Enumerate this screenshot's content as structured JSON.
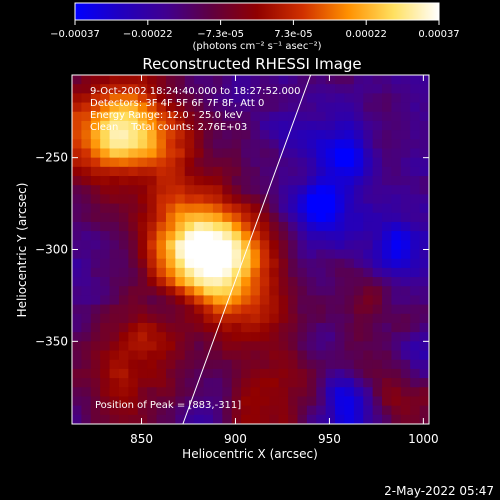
{
  "chart_data": {
    "type": "heatmap",
    "title": "Reconstructed RHESSI Image",
    "xlabel": "Heliocentric X (arcsec)",
    "ylabel": "Heliocentric Y (arcsec)",
    "xlim": [
      813,
      1003
    ],
    "ylim": [
      -395,
      -205
    ],
    "x_ticks": [
      850,
      900,
      950,
      1000
    ],
    "x_tick_labels": [
      "850",
      "900",
      "950",
      "1000"
    ],
    "y_ticks": [
      -250,
      -300,
      -350
    ],
    "y_tick_labels": [
      "-250",
      "-300",
      "-350"
    ],
    "colorbar": {
      "range": [
        -0.00037,
        0.00037
      ],
      "tick_labels": [
        "-0.00037",
        "-0.00022",
        "-7.3e-05",
        "7.3e-05",
        "0.00022",
        "0.00037"
      ],
      "unit_label": "(photons cm⁻² s⁻¹ asec⁻²)",
      "colors": [
        "#0000ff",
        "#2000c0",
        "#400090",
        "#600040",
        "#900000",
        "#d03000",
        "#ff9000",
        "#ffe060",
        "#ffffff"
      ]
    },
    "annotations": {
      "time": "9-Oct-2002 18:24:40.000 to 18:27:52.000",
      "detectors": "Detectors: 3F 4F 5F 6F 7F 8F, Att 0",
      "energy": "Energy Range: 12.0 - 25.0 keV",
      "clean": "Clean    Total counts: 2.76E+03",
      "peak": "Position of Peak = [883,-311]"
    },
    "limb_line": {
      "x": [
        872,
        940
      ],
      "y": [
        -395,
        -205
      ]
    },
    "grid": false,
    "hotspots": [
      {
        "x": 830,
        "y": -240,
        "amplitude": 1.0
      },
      {
        "x": 845,
        "y": -228,
        "amplitude": 0.8
      },
      {
        "x": 870,
        "y": -250,
        "amplitude": 0.5
      },
      {
        "x": 883,
        "y": -311,
        "amplitude": 1.15
      },
      {
        "x": 900,
        "y": -298,
        "amplitude": 0.9
      },
      {
        "x": 870,
        "y": -290,
        "amplitude": 0.7
      },
      {
        "x": 910,
        "y": -335,
        "amplitude": 0.55
      },
      {
        "x": 855,
        "y": -345,
        "amplitude": 0.5
      },
      {
        "x": 840,
        "y": -375,
        "amplitude": 0.55
      },
      {
        "x": 920,
        "y": -385,
        "amplitude": 0.6
      },
      {
        "x": 985,
        "y": -380,
        "amplitude": 0.5
      },
      {
        "x": 975,
        "y": -335,
        "amplitude": 0.35
      }
    ],
    "cold_spots": [
      {
        "x": 955,
        "y": -248,
        "amplitude": 0.8
      },
      {
        "x": 945,
        "y": -278,
        "amplitude": 0.9
      },
      {
        "x": 985,
        "y": -300,
        "amplitude": 0.7
      },
      {
        "x": 870,
        "y": -330,
        "amplitude": 0.6
      },
      {
        "x": 960,
        "y": -385,
        "amplitude": 0.9
      },
      {
        "x": 995,
        "y": -355,
        "amplitude": 0.5
      }
    ]
  },
  "footer": {
    "datestamp": "2-May-2022 05:47"
  }
}
